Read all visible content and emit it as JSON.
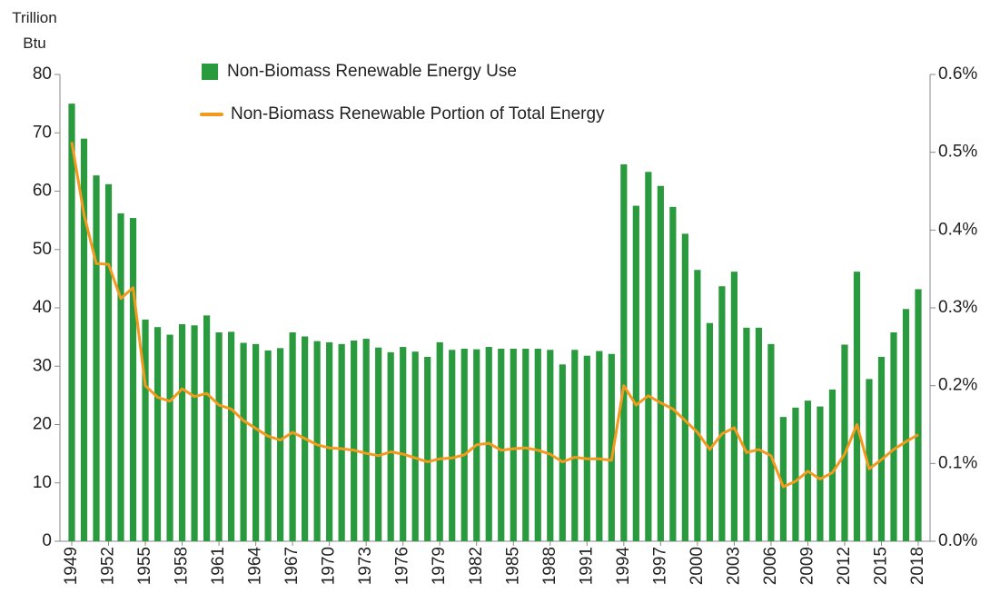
{
  "chart_data": {
    "type": "bar_line",
    "ylabel": "Trillion Btu",
    "categories": [
      "1949",
      null,
      null,
      "1952",
      null,
      null,
      "1955",
      null,
      null,
      "1958",
      null,
      null,
      "1961",
      null,
      null,
      "1964",
      null,
      null,
      "1967",
      null,
      null,
      "1970",
      null,
      null,
      "1973",
      null,
      null,
      "1976",
      null,
      null,
      "1979",
      null,
      null,
      "1982",
      null,
      null,
      "1985",
      null,
      null,
      "1988",
      null,
      null,
      "1991",
      null,
      null,
      "1994",
      null,
      null,
      "1997",
      null,
      null,
      "2000",
      null,
      null,
      "2003",
      null,
      null,
      "2006",
      null,
      null,
      "2009",
      null,
      null,
      "2012",
      null,
      null,
      "2015",
      null,
      null,
      "2018"
    ],
    "series": [
      {
        "name": "Non-Biomass Renewable Energy Use",
        "type": "bar",
        "color": "#2a9a3e",
        "values": [
          75,
          69,
          62.7,
          61.2,
          56.2,
          55.4,
          38,
          36.7,
          35.4,
          37.2,
          37,
          38.7,
          35.8,
          35.9,
          34,
          33.8,
          32.7,
          33.1,
          35.8,
          35.1,
          34.3,
          34.1,
          33.8,
          34.4,
          34.7,
          33.2,
          32.4,
          33.3,
          32.5,
          31.6,
          34.1,
          32.8,
          33,
          32.9,
          33.3,
          33,
          33,
          33,
          33,
          32.8,
          30.3,
          32.8,
          31.8,
          32.6,
          32.1,
          64.6,
          57.5,
          63.3,
          60.9,
          57.3,
          52.7,
          46.5,
          37.4,
          43.7,
          46.2,
          36.6,
          36.6,
          33.8,
          21.3,
          22.9,
          24.1,
          23.1,
          26,
          33.7,
          46.2,
          27.8,
          31.6,
          35.8,
          39.8,
          43.2
        ]
      },
      {
        "name": "Non-Biomass Renewable Portion of Total Energy",
        "type": "line",
        "axis": "y2",
        "color": "#f39a1e",
        "values": [
          0.513,
          0.42,
          0.357,
          0.356,
          0.312,
          0.326,
          0.2,
          0.185,
          0.18,
          0.196,
          0.186,
          0.19,
          0.175,
          0.17,
          0.155,
          0.145,
          0.135,
          0.13,
          0.14,
          0.132,
          0.124,
          0.12,
          0.119,
          0.117,
          0.113,
          0.11,
          0.115,
          0.112,
          0.107,
          0.102,
          0.106,
          0.107,
          0.111,
          0.124,
          0.126,
          0.117,
          0.119,
          0.12,
          0.117,
          0.112,
          0.102,
          0.108,
          0.106,
          0.106,
          0.104,
          0.2,
          0.175,
          0.187,
          0.178,
          0.17,
          0.155,
          0.14,
          0.118,
          0.138,
          0.146,
          0.114,
          0.118,
          0.11,
          0.07,
          0.077,
          0.09,
          0.08,
          0.088,
          0.112,
          0.15,
          0.093,
          0.105,
          0.118,
          0.128,
          0.137
        ]
      }
    ],
    "ylim": [
      0,
      80
    ],
    "yticks": [
      0,
      10,
      20,
      30,
      40,
      50,
      60,
      70,
      80
    ],
    "y2lim": [
      0,
      0.6
    ],
    "y2ticks": [
      {
        "value": 0,
        "label": "0.0%"
      },
      {
        "value": 0.1,
        "label": "0.1%"
      },
      {
        "value": 0.2,
        "label": "0.2%"
      },
      {
        "value": 0.3,
        "label": "0.3%"
      },
      {
        "value": 0.4,
        "label": "0.4%"
      },
      {
        "value": 0.5,
        "label": "0.5%"
      },
      {
        "value": 0.6,
        "label": "0.6%"
      }
    ],
    "grid": false
  }
}
